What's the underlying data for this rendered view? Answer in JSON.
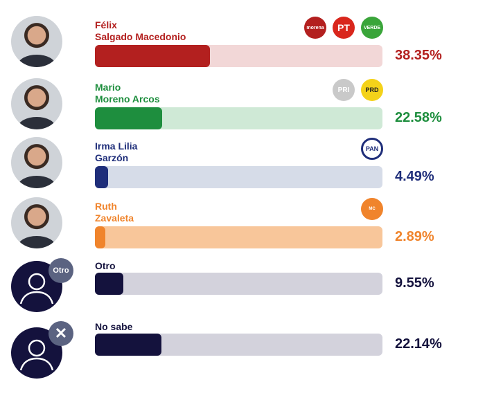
{
  "chart_data": {
    "type": "bar",
    "title": "",
    "categories": [
      "Félix Salgado Macedonio",
      "Mario Moreno Arcos",
      "Irma Lilia Garzón",
      "Ruth Zavaleta",
      "Otro",
      "No sabe"
    ],
    "values": [
      38.35,
      22.58,
      4.49,
      2.89,
      9.55,
      22.14
    ],
    "xlim": [
      0,
      100
    ]
  },
  "rows": [
    {
      "name1": "Félix",
      "name2": "Salgado Macedonio",
      "pct": "38.35%",
      "value": 38.35,
      "color": "#b3201f",
      "track": "#f2d7d7",
      "logos": [
        "morena",
        "PT",
        "VERDE"
      ]
    },
    {
      "name1": "Mario",
      "name2": "Moreno Arcos",
      "pct": "22.58%",
      "value": 22.58,
      "color": "#1e8e3e",
      "track": "#cfe9d6",
      "logos": [
        "PRI",
        "PRD"
      ]
    },
    {
      "name1": "Irma Lilia",
      "name2": "Garzón",
      "pct": "4.49%",
      "value": 4.49,
      "color": "#1f2e7a",
      "track": "#d6dce8",
      "logos": [
        "PAN"
      ]
    },
    {
      "name1": "Ruth",
      "name2": "Zavaleta",
      "pct": "2.89%",
      "value": 2.89,
      "color": "#f0842c",
      "track": "#f8c69a",
      "logos": [
        "MC"
      ]
    },
    {
      "name1": "Otro",
      "pct": "9.55%",
      "value": 9.55,
      "color": "#14123d",
      "track": "#d3d2dc",
      "badge": "Otro"
    },
    {
      "name1": "No sabe",
      "pct": "22.14%",
      "value": 22.14,
      "color": "#14123d",
      "track": "#d3d2dc"
    }
  ]
}
